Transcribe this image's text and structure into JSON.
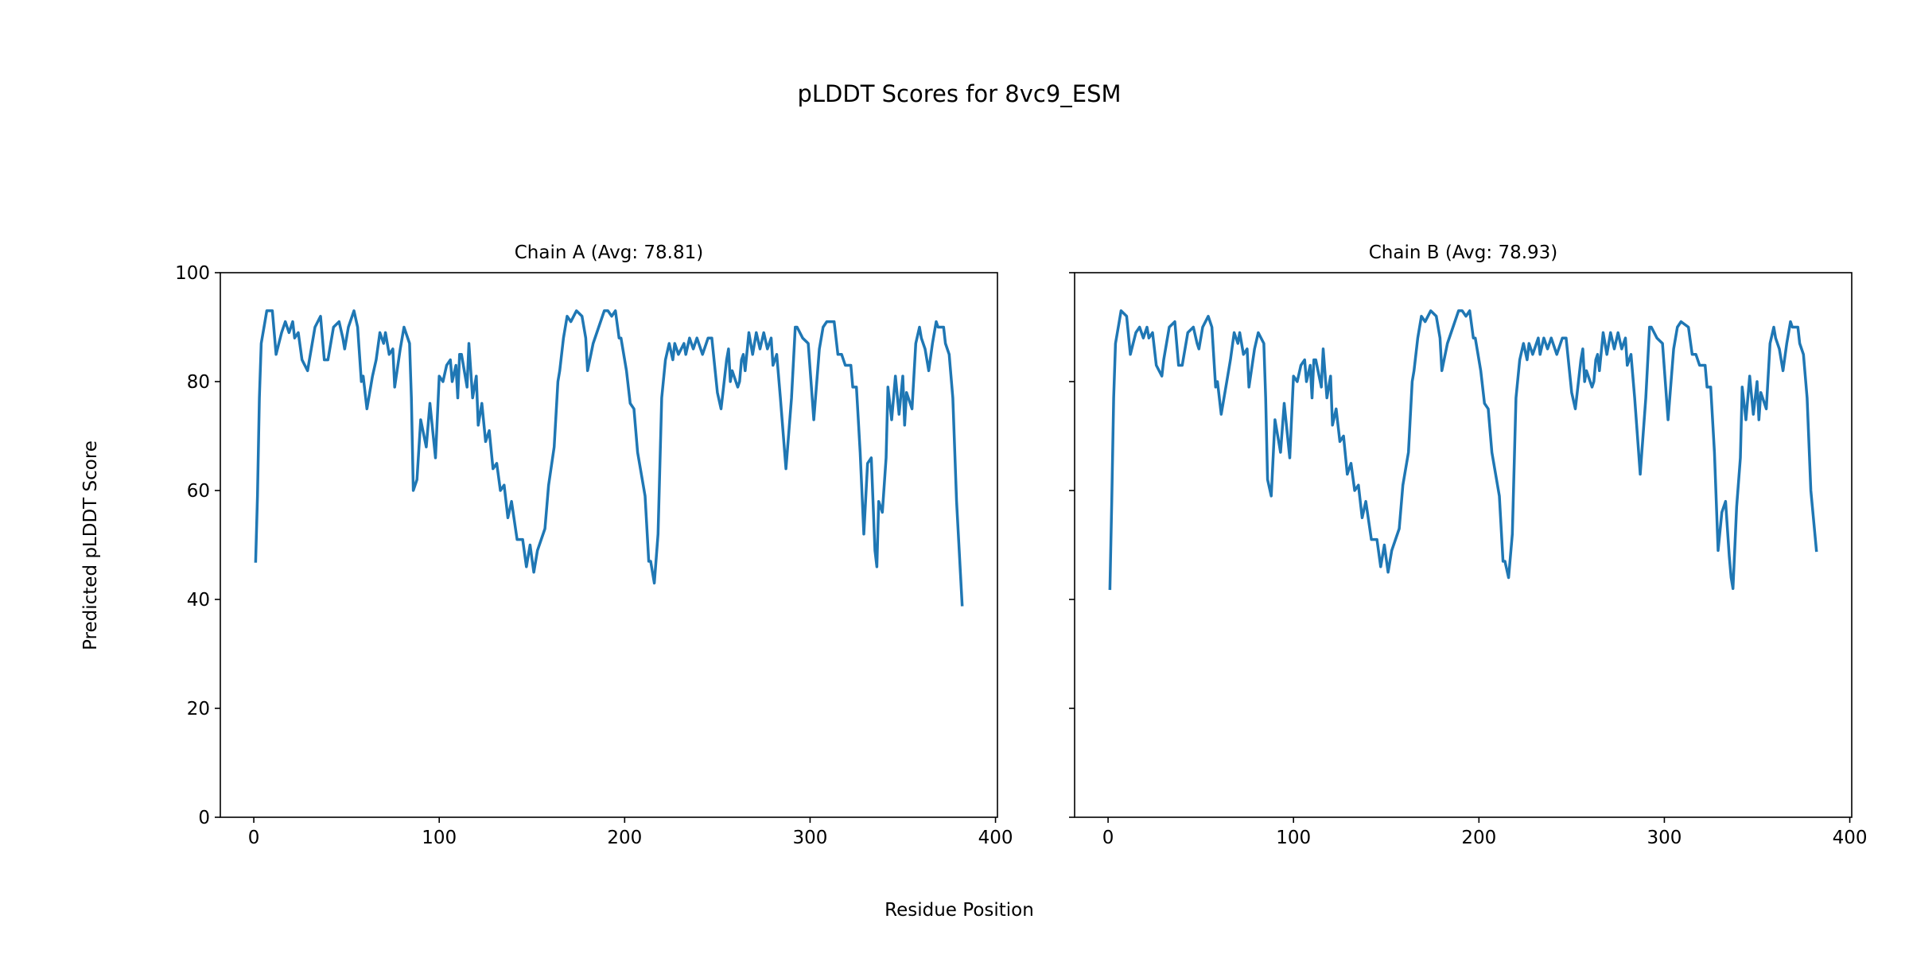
{
  "chart_data": [
    {
      "type": "line",
      "figure_title": "pLDDT Scores for 8vc9_ESM",
      "title": "Chain A (Avg: 78.81)",
      "xlabel": "Residue Position",
      "ylabel": "Predicted pLDDT Score",
      "xlim": [
        -18.05,
        401.05
      ],
      "ylim": [
        0,
        100
      ],
      "xticks": [
        0,
        100,
        200,
        300,
        400
      ],
      "yticks": [
        0,
        20,
        40,
        60,
        80,
        100
      ],
      "color": "#1f77b4",
      "series": [
        {
          "name": "Chain A",
          "x": [
            1,
            2,
            3,
            4,
            6,
            7,
            10,
            12,
            15,
            17,
            19,
            21,
            22,
            24,
            26,
            29,
            30,
            33,
            36,
            38,
            40,
            43,
            46,
            48,
            49,
            51,
            54,
            56,
            58,
            59,
            61,
            64,
            66,
            68,
            70,
            71,
            73,
            75,
            76,
            79,
            81,
            84,
            85,
            86,
            88,
            90,
            93,
            95,
            98,
            100,
            102,
            104,
            106,
            107,
            109,
            110,
            111,
            112,
            115,
            116,
            118,
            120,
            121,
            123,
            125,
            127,
            129,
            131,
            133,
            135,
            137,
            139,
            142,
            145,
            147,
            149,
            151,
            153,
            157,
            159,
            162,
            164,
            165,
            167,
            169,
            171,
            174,
            177,
            179,
            180,
            183,
            186,
            189,
            191,
            193,
            195,
            197,
            198,
            201,
            203,
            205,
            207,
            211,
            213,
            214,
            216,
            218,
            220,
            222,
            224,
            226,
            227,
            229,
            232,
            233,
            235,
            237,
            239,
            242,
            245,
            247,
            250,
            252,
            253,
            255,
            256,
            257,
            258,
            261,
            262,
            263,
            264,
            265,
            267,
            269,
            271,
            273,
            275,
            277,
            279,
            280,
            282,
            284,
            287,
            290,
            292,
            293,
            296,
            299,
            302,
            305,
            307,
            309,
            313,
            315,
            317,
            319,
            321,
            322,
            323,
            325,
            327,
            329,
            331,
            333,
            335,
            336,
            337,
            339,
            341,
            342,
            344,
            346,
            348,
            350,
            351,
            352,
            355,
            357,
            359,
            360,
            362,
            364,
            366,
            368,
            369,
            372,
            373,
            375,
            377,
            379,
            382
          ],
          "y": [
            47,
            59,
            77,
            87,
            91,
            93,
            93,
            85,
            89,
            91,
            89,
            91,
            88,
            89,
            84,
            82,
            84,
            90,
            92,
            84,
            84,
            90,
            91,
            88,
            86,
            90,
            93,
            90,
            80,
            81,
            75,
            81,
            84,
            89,
            87,
            89,
            85,
            86,
            79,
            86,
            90,
            87,
            77,
            60,
            62,
            73,
            68,
            76,
            66,
            81,
            80,
            83,
            84,
            80,
            83,
            77,
            85,
            85,
            79,
            87,
            77,
            81,
            72,
            76,
            69,
            71,
            64,
            65,
            60,
            61,
            55,
            58,
            51,
            51,
            46,
            50,
            45,
            49,
            53,
            61,
            68,
            80,
            82,
            88,
            92,
            91,
            93,
            92,
            88,
            82,
            87,
            90,
            93,
            93,
            92,
            93,
            88,
            88,
            82,
            76,
            75,
            67,
            59,
            47,
            47,
            43,
            52,
            77,
            84,
            87,
            84,
            87,
            85,
            87,
            85,
            88,
            86,
            88,
            85,
            88,
            88,
            78,
            75,
            78,
            84,
            86,
            80,
            82,
            79,
            80,
            84,
            85,
            82,
            89,
            85,
            89,
            86,
            89,
            86,
            88,
            83,
            85,
            77,
            64,
            77,
            90,
            90,
            88,
            87,
            73,
            86,
            90,
            91,
            91,
            85,
            85,
            83,
            83,
            83,
            79,
            79,
            67,
            52,
            65,
            66,
            49,
            46,
            58,
            56,
            66,
            79,
            73,
            81,
            74,
            81,
            72,
            78,
            75,
            87,
            90,
            88,
            86,
            82,
            87,
            91,
            90,
            90,
            87,
            85,
            77,
            58,
            39
          ]
        }
      ]
    },
    {
      "type": "line",
      "title": "Chain B (Avg: 78.93)",
      "xlim": [
        -18.05,
        401.05
      ],
      "ylim": [
        0,
        100
      ],
      "xticks": [
        0,
        100,
        200,
        300,
        400
      ],
      "yticks": [
        0,
        20,
        40,
        60,
        80,
        100
      ],
      "color": "#1f77b4",
      "series": [
        {
          "name": "Chain B",
          "x": [
            1,
            2,
            3,
            4,
            6,
            7,
            10,
            12,
            15,
            17,
            19,
            21,
            22,
            24,
            26,
            29,
            30,
            33,
            36,
            38,
            40,
            43,
            46,
            48,
            49,
            51,
            54,
            56,
            58,
            59,
            61,
            64,
            66,
            68,
            70,
            71,
            73,
            75,
            76,
            79,
            81,
            84,
            85,
            86,
            88,
            90,
            93,
            95,
            98,
            100,
            102,
            104,
            106,
            107,
            109,
            110,
            111,
            112,
            115,
            116,
            118,
            120,
            121,
            123,
            125,
            127,
            129,
            131,
            133,
            135,
            137,
            139,
            142,
            145,
            147,
            149,
            151,
            153,
            157,
            159,
            162,
            164,
            165,
            167,
            169,
            171,
            174,
            177,
            179,
            180,
            183,
            186,
            189,
            191,
            193,
            195,
            197,
            198,
            201,
            203,
            205,
            207,
            211,
            213,
            214,
            216,
            218,
            220,
            222,
            224,
            226,
            227,
            229,
            232,
            233,
            235,
            237,
            239,
            242,
            245,
            247,
            250,
            252,
            253,
            255,
            256,
            257,
            258,
            261,
            262,
            263,
            264,
            265,
            267,
            269,
            271,
            273,
            275,
            277,
            279,
            280,
            282,
            284,
            287,
            290,
            292,
            293,
            296,
            299,
            302,
            305,
            307,
            309,
            313,
            315,
            317,
            319,
            321,
            322,
            323,
            325,
            327,
            329,
            331,
            333,
            335,
            336,
            337,
            339,
            341,
            342,
            344,
            346,
            348,
            350,
            351,
            352,
            355,
            357,
            359,
            360,
            362,
            364,
            366,
            368,
            369,
            372,
            373,
            375,
            377,
            379,
            382
          ],
          "y": [
            42,
            58,
            77,
            87,
            91,
            93,
            92,
            85,
            89,
            90,
            88,
            90,
            88,
            89,
            83,
            81,
            84,
            90,
            91,
            83,
            83,
            89,
            90,
            87,
            86,
            90,
            92,
            90,
            79,
            80,
            74,
            80,
            84,
            89,
            87,
            89,
            85,
            86,
            79,
            86,
            89,
            87,
            77,
            62,
            59,
            73,
            67,
            76,
            66,
            81,
            80,
            83,
            84,
            80,
            83,
            77,
            84,
            84,
            79,
            86,
            77,
            81,
            72,
            75,
            69,
            70,
            63,
            65,
            60,
            61,
            55,
            58,
            51,
            51,
            46,
            50,
            45,
            49,
            53,
            61,
            67,
            80,
            82,
            88,
            92,
            91,
            93,
            92,
            88,
            82,
            87,
            90,
            93,
            93,
            92,
            93,
            88,
            88,
            82,
            76,
            75,
            67,
            59,
            47,
            47,
            44,
            52,
            77,
            84,
            87,
            84,
            87,
            85,
            88,
            85,
            88,
            86,
            88,
            85,
            88,
            88,
            78,
            75,
            78,
            84,
            86,
            80,
            82,
            79,
            80,
            84,
            85,
            82,
            89,
            85,
            89,
            86,
            89,
            86,
            88,
            83,
            85,
            77,
            63,
            77,
            90,
            90,
            88,
            87,
            73,
            86,
            90,
            91,
            90,
            85,
            85,
            83,
            83,
            83,
            79,
            79,
            67,
            49,
            56,
            58,
            48,
            44,
            42,
            57,
            66,
            79,
            73,
            81,
            74,
            80,
            73,
            78,
            75,
            87,
            90,
            88,
            86,
            82,
            87,
            91,
            90,
            90,
            87,
            85,
            77,
            60,
            49
          ]
        }
      ]
    }
  ]
}
